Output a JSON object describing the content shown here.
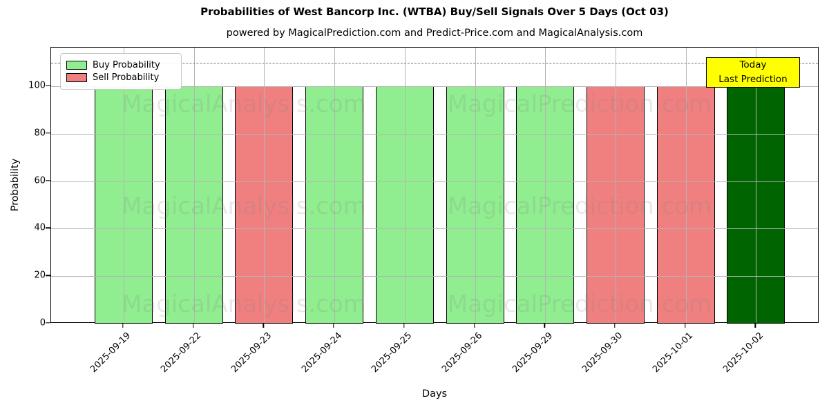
{
  "title": "Probabilities of West Bancorp Inc. (WTBA) Buy/Sell Signals Over 5 Days (Oct 03)",
  "subtitle": "powered by MagicalPrediction.com and Predict-Price.com and MagicalAnalysis.com",
  "watermarks": {
    "left_text": "MagicalAnalysis.com",
    "right_text": "MagicalPrediction.com"
  },
  "legend": {
    "items": [
      {
        "label": "Buy Probability",
        "color": "#90ee90"
      },
      {
        "label": "Sell Probability",
        "color": "#f08080"
      }
    ]
  },
  "annotation": {
    "line1": "Today",
    "line2": "Last Prediction",
    "bg_color": "#ffff00"
  },
  "axes": {
    "xlabel": "Days",
    "ylabel": "Probability",
    "yticks": [
      0,
      20,
      40,
      60,
      80,
      100
    ],
    "ylim": [
      0,
      116.3
    ],
    "dashed_line_y": 110,
    "grid": true
  },
  "colors": {
    "buy": "#90ee90",
    "sell": "#f08080",
    "today_buy": "#006400",
    "grid": "#b4b4b4",
    "dashed_line": "#707070"
  },
  "chart_data": {
    "type": "bar",
    "title": "Probabilities of West Bancorp Inc. (WTBA) Buy/Sell Signals Over 5 Days (Oct 03)",
    "xlabel": "Days",
    "ylabel": "Probability",
    "ylim": [
      0,
      116.3
    ],
    "grid": true,
    "legend_position": "upper left",
    "categories": [
      "2025-09-19",
      "2025-09-22",
      "2025-09-23",
      "2025-09-24",
      "2025-09-25",
      "2025-09-26",
      "2025-09-29",
      "2025-09-30",
      "2025-10-01",
      "2025-10-02"
    ],
    "series": [
      {
        "name": "Buy Probability",
        "color": "#90ee90",
        "values": [
          100,
          100,
          0,
          100,
          100,
          100,
          100,
          0,
          0,
          100
        ]
      },
      {
        "name": "Sell Probability",
        "color": "#f08080",
        "values": [
          0,
          0,
          100,
          0,
          0,
          0,
          0,
          100,
          100,
          0
        ]
      }
    ],
    "bars": [
      {
        "date": "2025-09-19",
        "value": 100,
        "signal": "buy",
        "color": "#90ee90"
      },
      {
        "date": "2025-09-22",
        "value": 100,
        "signal": "buy",
        "color": "#90ee90"
      },
      {
        "date": "2025-09-23",
        "value": 100,
        "signal": "sell",
        "color": "#f08080"
      },
      {
        "date": "2025-09-24",
        "value": 100,
        "signal": "buy",
        "color": "#90ee90"
      },
      {
        "date": "2025-09-25",
        "value": 100,
        "signal": "buy",
        "color": "#90ee90"
      },
      {
        "date": "2025-09-26",
        "value": 100,
        "signal": "buy",
        "color": "#90ee90"
      },
      {
        "date": "2025-09-29",
        "value": 100,
        "signal": "buy",
        "color": "#90ee90"
      },
      {
        "date": "2025-09-30",
        "value": 100,
        "signal": "sell",
        "color": "#f08080"
      },
      {
        "date": "2025-10-01",
        "value": 100,
        "signal": "sell",
        "color": "#f08080"
      },
      {
        "date": "2025-10-02",
        "value": 100,
        "signal": "buy",
        "color": "#006400",
        "note": "Today / Last Prediction"
      }
    ],
    "dashed_reference_line": 110
  }
}
